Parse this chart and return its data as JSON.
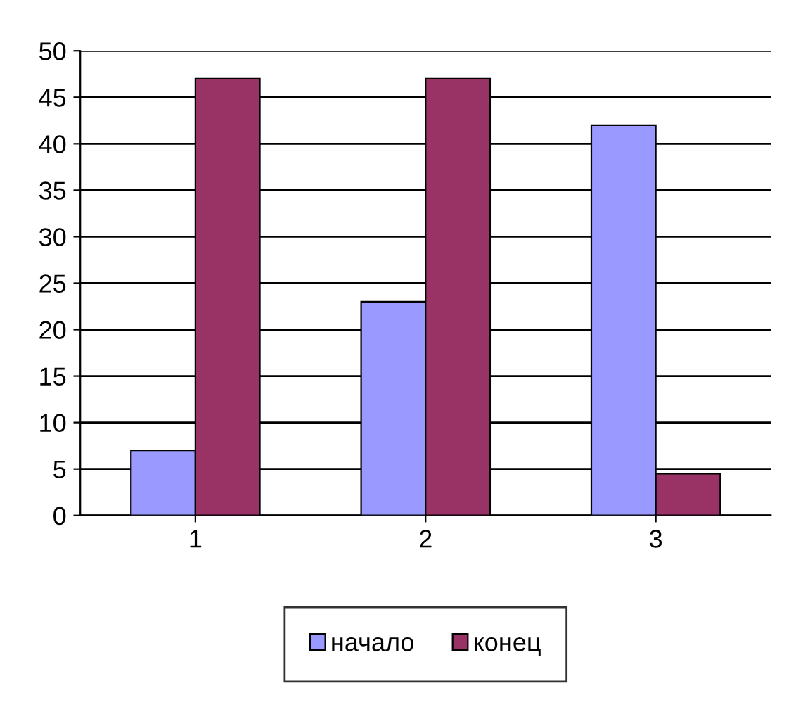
{
  "chart_data": {
    "type": "bar",
    "categories": [
      "1",
      "2",
      "3"
    ],
    "series": [
      {
        "name": "начало",
        "color": "#9999ff",
        "values": [
          7,
          23,
          42
        ]
      },
      {
        "name": "конец",
        "color": "#993366",
        "values": [
          47,
          47,
          4.5
        ]
      }
    ],
    "ylim": [
      0,
      50
    ],
    "yticks": [
      0,
      5,
      10,
      15,
      20,
      25,
      30,
      35,
      40,
      45,
      50
    ],
    "grid": "y",
    "legend": "bottom"
  }
}
